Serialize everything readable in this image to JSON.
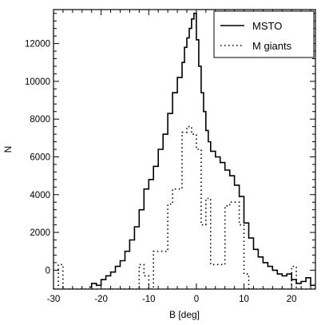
{
  "chart_data": {
    "type": "line",
    "title": "",
    "xlabel": "B [deg]",
    "ylabel": "N",
    "xlim": [
      -30,
      25
    ],
    "ylim": [
      -1000,
      13800
    ],
    "x_ticks": [
      -30,
      -20,
      -10,
      0,
      10,
      20
    ],
    "y_ticks": [
      0,
      2000,
      4000,
      6000,
      8000,
      10000,
      12000
    ],
    "legend_position": "top-right",
    "grid": false,
    "series": [
      {
        "name": "MSTO",
        "style": "solid",
        "step": true,
        "x": [
          -22.5,
          -22,
          -21,
          -20,
          -19,
          -18,
          -17,
          -16,
          -15,
          -14,
          -13,
          -12,
          -11,
          -10,
          -9,
          -8,
          -7,
          -6,
          -5,
          -4,
          -3,
          -2.5,
          -2,
          -1.5,
          -1,
          -0.5,
          0,
          0.5,
          1,
          1.5,
          2,
          2.5,
          3,
          4,
          5,
          6,
          7,
          8,
          9,
          10,
          11,
          12,
          13,
          14,
          15,
          16,
          17,
          18,
          19,
          20,
          21,
          22,
          23,
          24,
          25
        ],
        "values": [
          -900,
          -700,
          -800,
          -500,
          -300,
          -100,
          200,
          500,
          1000,
          1600,
          2300,
          3200,
          4300,
          4800,
          5500,
          6400,
          7200,
          8300,
          9400,
          10200,
          11000,
          11800,
          12300,
          12800,
          13300,
          13600,
          12200,
          10800,
          9400,
          8400,
          7400,
          6800,
          6300,
          6000,
          5700,
          5300,
          5000,
          4500,
          3900,
          2500,
          1700,
          1100,
          700,
          400,
          200,
          0,
          -200,
          -300,
          -200,
          -500,
          -700,
          -600,
          -400,
          -800,
          -800
        ]
      },
      {
        "name": "M giants",
        "style": "dotted",
        "step": true,
        "x": [
          -30,
          -29,
          -28,
          -27,
          -26,
          -25,
          -24,
          -23,
          -22,
          -21,
          -20,
          -19,
          -18,
          -17,
          -16,
          -15,
          -14,
          -13,
          -12,
          -11,
          -10,
          -9,
          -8,
          -7,
          -6,
          -5,
          -4,
          -3,
          -2,
          -1,
          0,
          1,
          2,
          3,
          4,
          5,
          6,
          7,
          8,
          9,
          10,
          11,
          12,
          13,
          14,
          15,
          16,
          17,
          18,
          19,
          20,
          21,
          22,
          23,
          24,
          25
        ],
        "values": [
          -1000,
          300,
          -1000,
          -1000,
          -1000,
          -1000,
          -1000,
          -1000,
          -1000,
          -1000,
          -1000,
          -1000,
          -1000,
          -1000,
          -1000,
          -1000,
          -1000,
          -1000,
          300,
          -300,
          -1000,
          1000,
          1000,
          1000,
          3500,
          4300,
          4300,
          7300,
          7600,
          7200,
          6400,
          2400,
          3800,
          300,
          300,
          300,
          3400,
          3600,
          3600,
          2400,
          -200,
          -1000,
          -1000,
          -1000,
          -1000,
          -1000,
          -1000,
          -1000,
          -1000,
          -1000,
          200,
          -1000,
          -1000,
          -1000,
          -1000,
          -1000
        ]
      }
    ]
  }
}
